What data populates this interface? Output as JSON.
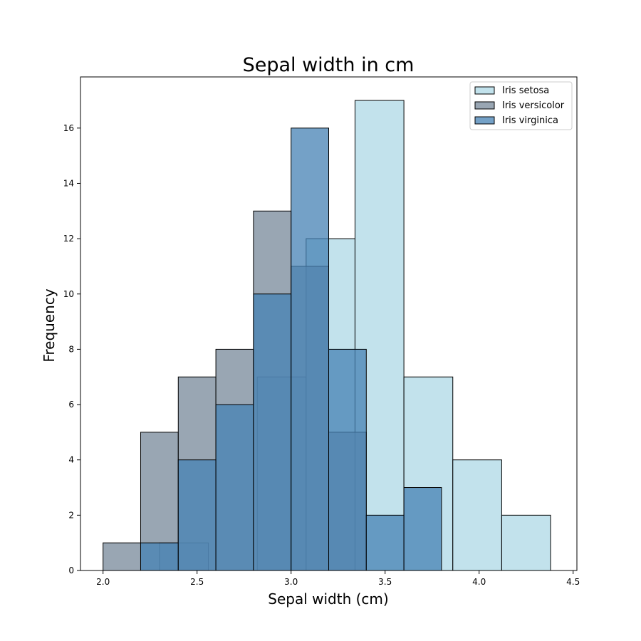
{
  "chart_data": {
    "type": "bar",
    "title": "Sepal width in cm",
    "xlabel": "Sepal width (cm)",
    "ylabel": "Frequency",
    "xlim": [
      1.88,
      4.52
    ],
    "ylim": [
      0,
      17.85
    ],
    "xticks": [
      "2.0",
      "2.5",
      "3.0",
      "3.5",
      "4.0",
      "4.5"
    ],
    "yticks": [
      "0",
      "2",
      "4",
      "6",
      "8",
      "10",
      "12",
      "14",
      "16"
    ],
    "grid": false,
    "legend_position": "top-right",
    "series": [
      {
        "name": "Iris setosa",
        "color": "#add8e6",
        "alpha": 0.75,
        "bins": [
          {
            "x0": 2.3,
            "x1": 2.56,
            "count": 1
          },
          {
            "x0": 2.56,
            "x1": 2.82,
            "count": 0
          },
          {
            "x0": 2.82,
            "x1": 3.08,
            "count": 7
          },
          {
            "x0": 3.08,
            "x1": 3.34,
            "count": 12
          },
          {
            "x0": 3.34,
            "x1": 3.6,
            "count": 17
          },
          {
            "x0": 3.6,
            "x1": 3.86,
            "count": 7
          },
          {
            "x0": 3.86,
            "x1": 4.12,
            "count": 4
          },
          {
            "x0": 4.12,
            "x1": 4.38,
            "count": 2
          }
        ]
      },
      {
        "name": "Iris versicolor",
        "color": "#778899",
        "alpha": 0.75,
        "bins": [
          {
            "x0": 2.0,
            "x1": 2.2,
            "count": 1
          },
          {
            "x0": 2.2,
            "x1": 2.4,
            "count": 5
          },
          {
            "x0": 2.4,
            "x1": 2.6,
            "count": 7
          },
          {
            "x0": 2.6,
            "x1": 2.8,
            "count": 8
          },
          {
            "x0": 2.8,
            "x1": 3.0,
            "count": 13
          },
          {
            "x0": 3.0,
            "x1": 3.2,
            "count": 11
          },
          {
            "x0": 3.2,
            "x1": 3.4,
            "count": 5
          }
        ]
      },
      {
        "name": "Iris virginica",
        "color": "#4682b4",
        "alpha": 0.75,
        "bins": [
          {
            "x0": 2.2,
            "x1": 2.4,
            "count": 1
          },
          {
            "x0": 2.4,
            "x1": 2.6,
            "count": 4
          },
          {
            "x0": 2.6,
            "x1": 2.8,
            "count": 6
          },
          {
            "x0": 2.8,
            "x1": 3.0,
            "count": 10
          },
          {
            "x0": 3.0,
            "x1": 3.2,
            "count": 16
          },
          {
            "x0": 3.2,
            "x1": 3.4,
            "count": 8
          },
          {
            "x0": 3.4,
            "x1": 3.6,
            "count": 2
          },
          {
            "x0": 3.6,
            "x1": 3.8,
            "count": 3
          }
        ]
      }
    ]
  }
}
